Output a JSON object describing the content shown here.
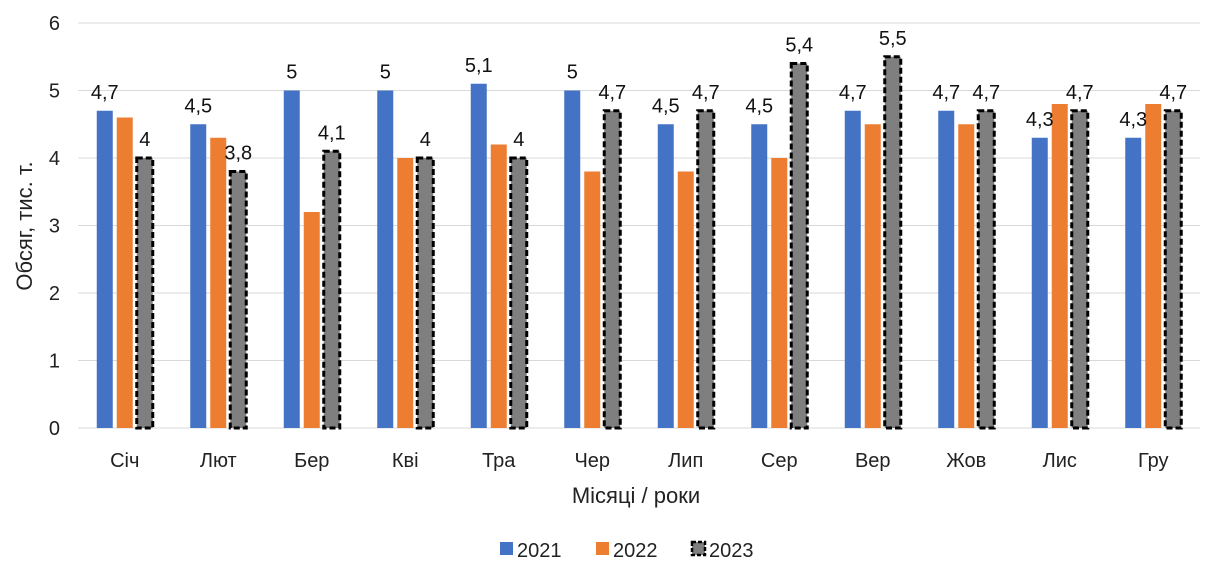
{
  "chart_data": {
    "type": "bar",
    "categories": [
      "Січ",
      "Лют",
      "Бер",
      "Кві",
      "Тра",
      "Чер",
      "Лип",
      "Сер",
      "Вер",
      "Жов",
      "Лис",
      "Гру"
    ],
    "series": [
      {
        "name": "2021",
        "color": "#4472C4",
        "values": [
          4.7,
          4.5,
          5.0,
          5.0,
          5.1,
          5.0,
          4.5,
          4.5,
          4.7,
          4.7,
          4.3,
          4.3
        ],
        "labels": [
          "4,7",
          "4,5",
          "5",
          "5",
          "5,1",
          "5",
          "4,5",
          "4,5",
          "4,7",
          "4,7",
          "4,3",
          "4,3"
        ]
      },
      {
        "name": "2022",
        "color": "#ED7D31",
        "values": [
          4.6,
          4.3,
          3.2,
          4.0,
          4.2,
          3.8,
          3.8,
          4.0,
          4.5,
          4.5,
          4.8,
          4.8
        ],
        "labels": [],
        "label_index": []
      },
      {
        "name": "2023",
        "color": "#7F7F7F",
        "pattern": "dashed-border",
        "values": [
          4.0,
          3.8,
          4.1,
          4.0,
          4.0,
          4.7,
          4.7,
          5.4,
          5.5,
          4.7,
          4.7,
          4.7
        ],
        "labels": [
          "4",
          "3,8",
          "4,1",
          "4",
          "4",
          "4,7",
          "4,7",
          "5,4",
          "5,5",
          "4,7",
          "4,7",
          "4,7"
        ]
      }
    ],
    "title": "",
    "xlabel": "Місяці / роки",
    "ylabel": "Обсяг, тис. т.",
    "ylim": [
      0,
      6
    ],
    "yticks": [
      "0",
      "1",
      "2",
      "3",
      "4",
      "5",
      "6"
    ],
    "grid": true,
    "legend": "bottom"
  }
}
